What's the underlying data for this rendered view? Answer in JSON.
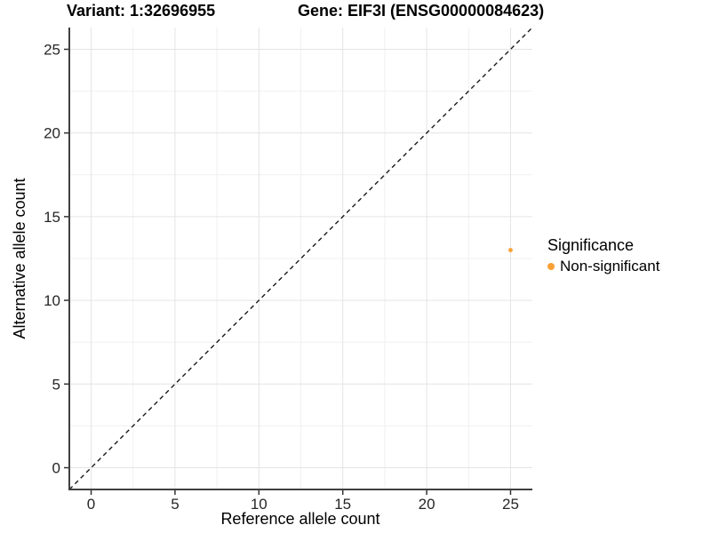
{
  "titles": {
    "variant": "Variant: 1:32696955",
    "gene": "Gene: EIF3I (ENSG00000084623)"
  },
  "axes": {
    "x": {
      "label": "Reference allele count"
    },
    "y": {
      "label": "Alternative allele count"
    }
  },
  "legend": {
    "title": "Significance",
    "items": [
      {
        "label": "Non-significant",
        "color": "#F9A035"
      }
    ]
  },
  "colors": {
    "point": "#F9A035",
    "grid_major": "#E4E4E4",
    "grid_minor": "#F0F0F0",
    "axis_line": "#404040",
    "tick_mark": "#333333",
    "tick_text": "#262626",
    "identity_line": "#1A1A1A",
    "background": "#FFFFFF"
  },
  "chart_data": {
    "type": "scatter",
    "title": "Variant: 1:32696955 — Gene: EIF3I (ENSG00000084623)",
    "xlabel": "Reference allele count",
    "ylabel": "Alternative allele count",
    "x_ticks": [
      0,
      5,
      10,
      15,
      20,
      25
    ],
    "y_ticks": [
      0,
      5,
      10,
      15,
      20,
      25
    ],
    "x_minor_ticks": [
      2.5,
      7.5,
      12.5,
      17.5,
      22.5
    ],
    "y_minor_ticks": [
      2.5,
      7.5,
      12.5,
      17.5,
      22.5
    ],
    "xlim": [
      -1.3,
      26.3
    ],
    "ylim": [
      -1.3,
      26.3
    ],
    "grid": true,
    "legend_position": "right",
    "series": [
      {
        "name": "Non-significant",
        "color": "#F9A035",
        "points": [
          {
            "x": 25,
            "y": 13
          }
        ]
      }
    ],
    "reference_line": {
      "type": "identity y=x",
      "style": "dashed",
      "color": "#1A1A1A"
    }
  }
}
